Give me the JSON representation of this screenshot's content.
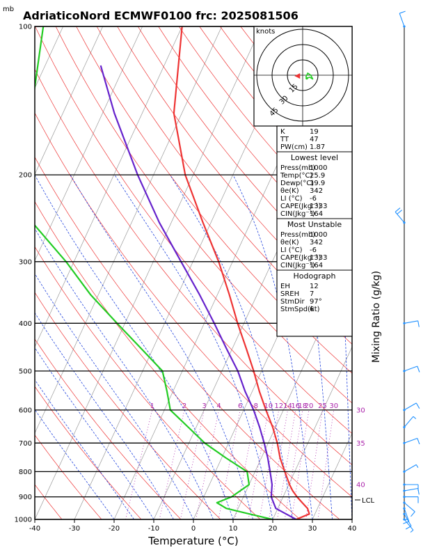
{
  "header": {
    "title": "AdriaticoNord ECMWF0100 frc: 2025081506",
    "mb_label": "mb"
  },
  "axes": {
    "x_label": "Temperature (°C)",
    "y_label_right": "Mixing Ratio (g/kg)",
    "lcl_label": "LCL",
    "hodo_unit": "knots"
  },
  "colors": {
    "temperature": "#ee3333",
    "dewpoint": "#22cc22",
    "parcel": "#6622cc",
    "dry_adiabat": "#ee3333",
    "moist_adiabat": "#2244dd",
    "isotherm": "#999999",
    "mixing_ratio": "#aa22aa",
    "wind_barb": "#1e90ff"
  },
  "stats": {
    "general": [
      {
        "label": "K",
        "value": "19"
      },
      {
        "label": "TT",
        "value": "47"
      },
      {
        "label": "PW(cm)",
        "value": "1.87"
      }
    ],
    "lowest_level": {
      "title": "Lowest level",
      "rows": [
        {
          "label": "Press(mb)",
          "value": "1000"
        },
        {
          "label": "Temp(°C)",
          "value": "25.9"
        },
        {
          "label": "Dewp(°C)",
          "value": "19.9"
        },
        {
          "label": "θe(K)",
          "value": "342"
        },
        {
          "label": "LI (°C)",
          "value": "-6"
        },
        {
          "label": "CAPE(Jkg⁻¹)",
          "value": "1333"
        },
        {
          "label": "CIN(Jkg⁻¹)",
          "value": "164"
        }
      ]
    },
    "most_unstable": {
      "title": "Most Unstable",
      "rows": [
        {
          "label": "Press(mb)",
          "value": "1000"
        },
        {
          "label": "θe(K)",
          "value": "342"
        },
        {
          "label": "LI (°C)",
          "value": "-6"
        },
        {
          "label": "CAPE(Jkg⁻¹)",
          "value": "1333"
        },
        {
          "label": "CIN(Jkg⁻¹)",
          "value": "164"
        }
      ]
    },
    "hodograph": {
      "title": "Hodograph",
      "rows": [
        {
          "label": "EH",
          "value": "12"
        },
        {
          "label": "SREH",
          "value": "7"
        },
        {
          "label": "StmDir",
          "value": "97°"
        },
        {
          "label": "StmSpd(kt)",
          "value": "6"
        }
      ]
    }
  },
  "chart_data": {
    "type": "line",
    "title": "AdriaticoNord ECMWF0100 frc: 2025081506",
    "xlabel": "Temperature (°C)",
    "ylabel": "mb",
    "xlim": [
      -40,
      40
    ],
    "ylim": [
      1000,
      100
    ],
    "y_scale": "log",
    "x_ticks": [
      -40,
      -30,
      -20,
      -10,
      0,
      10,
      20,
      30,
      40
    ],
    "y_ticks": [
      1000,
      900,
      800,
      700,
      600,
      500,
      400,
      300,
      200,
      100
    ],
    "mixing_ratio_labels": [
      "1",
      "2",
      "3",
      "4",
      "6",
      "8",
      "10",
      "12",
      "14",
      "16",
      "18",
      "20",
      "25",
      "30"
    ],
    "theta_e_labels": [
      "30",
      "35",
      "40"
    ],
    "hodograph_rings": [
      "15",
      "30",
      "45"
    ],
    "series": [
      {
        "name": "Temperature",
        "points": [
          [
            1000,
            25.9
          ],
          [
            975,
            28.6
          ],
          [
            950,
            27.5
          ],
          [
            925,
            25.5
          ],
          [
            900,
            23.5
          ],
          [
            875,
            21.7
          ],
          [
            850,
            20.2
          ],
          [
            800,
            17.5
          ],
          [
            750,
            14.7
          ],
          [
            700,
            12.3
          ],
          [
            650,
            9.3
          ],
          [
            600,
            5.6
          ],
          [
            550,
            1.8
          ],
          [
            500,
            -2.0
          ],
          [
            450,
            -6.5
          ],
          [
            400,
            -11.6
          ],
          [
            350,
            -17.0
          ],
          [
            300,
            -23.5
          ],
          [
            250,
            -32.0
          ],
          [
            200,
            -42.0
          ],
          [
            150,
            -52.0
          ],
          [
            100,
            -60.0
          ]
        ]
      },
      {
        "name": "Dewpoint",
        "points": [
          [
            1000,
            19.9
          ],
          [
            975,
            13.5
          ],
          [
            950,
            7.0
          ],
          [
            925,
            4.0
          ],
          [
            900,
            7.0
          ],
          [
            850,
            10.0
          ],
          [
            800,
            8.0
          ],
          [
            750,
            1.0
          ],
          [
            700,
            -6.0
          ],
          [
            650,
            -12.0
          ],
          [
            600,
            -18.5
          ],
          [
            550,
            -21.5
          ],
          [
            500,
            -25.0
          ],
          [
            450,
            -33.0
          ],
          [
            400,
            -42.0
          ],
          [
            350,
            -52.0
          ],
          [
            300,
            -62.0
          ],
          [
            250,
            -75.0
          ],
          [
            200,
            -80.0
          ],
          [
            150,
            -88.0
          ],
          [
            100,
            -95.0
          ]
        ]
      },
      {
        "name": "Parcel",
        "points": [
          [
            1000,
            25.9
          ],
          [
            950,
            19.5
          ],
          [
            900,
            17.0
          ],
          [
            850,
            15.8
          ],
          [
            800,
            13.8
          ],
          [
            750,
            11.6
          ],
          [
            700,
            9.0
          ],
          [
            650,
            6.0
          ],
          [
            600,
            2.5
          ],
          [
            550,
            -1.8
          ],
          [
            500,
            -6.0
          ],
          [
            450,
            -11.5
          ],
          [
            400,
            -17.5
          ],
          [
            350,
            -24.5
          ],
          [
            300,
            -33.0
          ],
          [
            250,
            -43.0
          ],
          [
            200,
            -54.0
          ],
          [
            150,
            -67.0
          ],
          [
            120,
            -76.0
          ]
        ]
      }
    ],
    "wind_profile": [
      {
        "p": 1000,
        "spd": 5,
        "dir": 140
      },
      {
        "p": 975,
        "spd": 10,
        "dir": 150
      },
      {
        "p": 950,
        "spd": 15,
        "dir": 160
      },
      {
        "p": 925,
        "spd": 10,
        "dir": 130
      },
      {
        "p": 900,
        "spd": 10,
        "dir": 90
      },
      {
        "p": 875,
        "spd": 10,
        "dir": 80
      },
      {
        "p": 850,
        "spd": 10,
        "dir": 90
      },
      {
        "p": 800,
        "spd": 5,
        "dir": 60
      },
      {
        "p": 700,
        "spd": 10,
        "dir": 70
      },
      {
        "p": 650,
        "spd": 5,
        "dir": 40
      },
      {
        "p": 600,
        "spd": 10,
        "dir": 60
      },
      {
        "p": 500,
        "spd": 10,
        "dir": 70
      },
      {
        "p": 400,
        "spd": 10,
        "dir": 80
      },
      {
        "p": 250,
        "spd": 20,
        "dir": 320
      },
      {
        "p": 100,
        "spd": 10,
        "dir": 340
      }
    ],
    "hodograph_points": [
      [
        4,
        -3
      ],
      [
        7,
        -2
      ],
      [
        10,
        -4
      ],
      [
        8,
        0
      ],
      [
        5,
        2
      ],
      [
        3,
        -2
      ]
    ],
    "hodograph_storm_dir_deg": 97,
    "hodograph_storm_spd_kt": 6
  }
}
